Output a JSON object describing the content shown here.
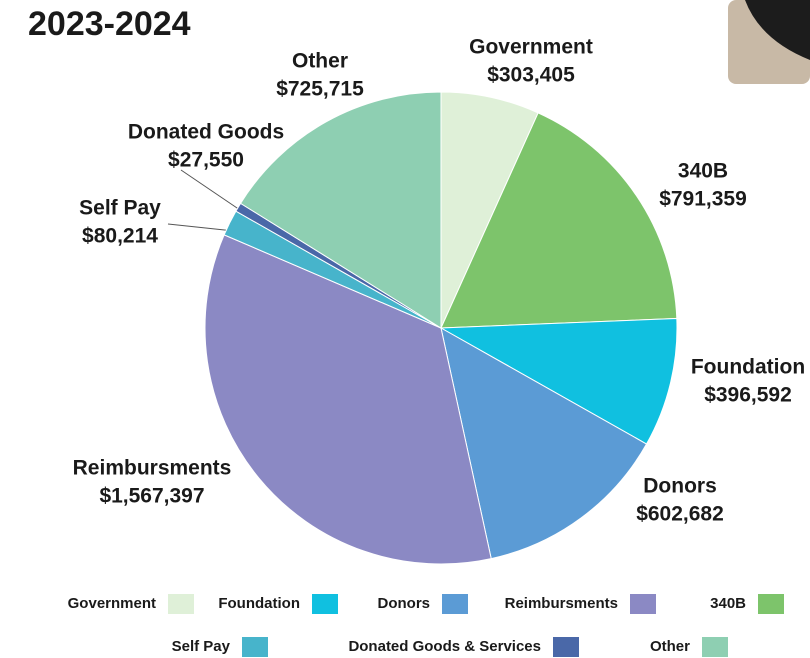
{
  "chart_data": {
    "type": "pie",
    "title": "2023-2024",
    "categories": [
      "Government",
      "340B",
      "Foundation",
      "Donors",
      "Reimbursments",
      "Self Pay",
      "Donated Goods & Services",
      "Other"
    ],
    "labels": [
      "Government",
      "340B",
      "Foundation",
      "Donors",
      "Reimbursments",
      "Self Pay",
      "Donated Goods",
      "Other"
    ],
    "values": [
      303405,
      791359,
      396592,
      602682,
      1567397,
      80214,
      27550,
      725715
    ],
    "value_labels": [
      "$303,405",
      "$791,359",
      "$396,592",
      "$602,682",
      "$1,567,397",
      "$80,214",
      "$27,550",
      "$725,715"
    ],
    "colors": [
      "#dff0d8",
      "#7dc46b",
      "#10c0e0",
      "#5b9bd5",
      "#8b89c4",
      "#47b4cb",
      "#4a68a8",
      "#8ecfb2"
    ]
  }
}
